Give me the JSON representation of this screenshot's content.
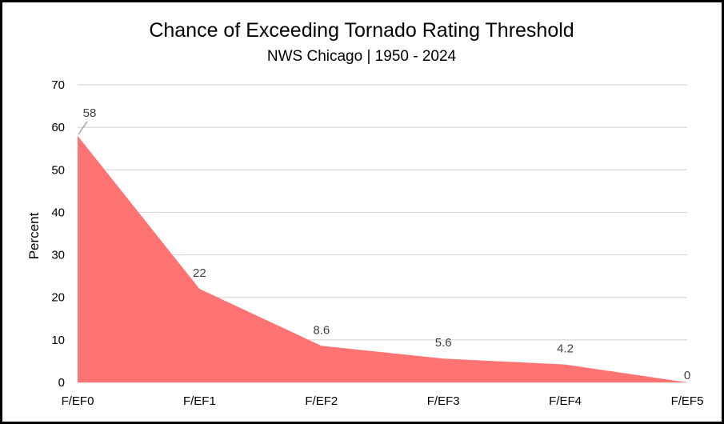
{
  "chart_data": {
    "type": "area",
    "title": "Chance of Exceeding Tornado Rating Threshold",
    "subtitle": "NWS Chicago | 1950 - 2024",
    "xlabel": "",
    "ylabel": "Percent",
    "categories": [
      "F/EF0",
      "F/EF1",
      "F/EF2",
      "F/EF3",
      "F/EF4",
      "F/EF5"
    ],
    "series": [
      {
        "values": [
          58,
          22,
          8.6,
          5.6,
          4.2,
          0
        ],
        "color": "#ff7373"
      }
    ],
    "data_labels": [
      "58",
      "22",
      "8.6",
      "5.6",
      "4.2",
      "0"
    ],
    "ylim": [
      0,
      70
    ],
    "yticks": [
      0,
      10,
      20,
      30,
      40,
      50,
      60,
      70
    ],
    "grid": true,
    "legend": "none"
  }
}
